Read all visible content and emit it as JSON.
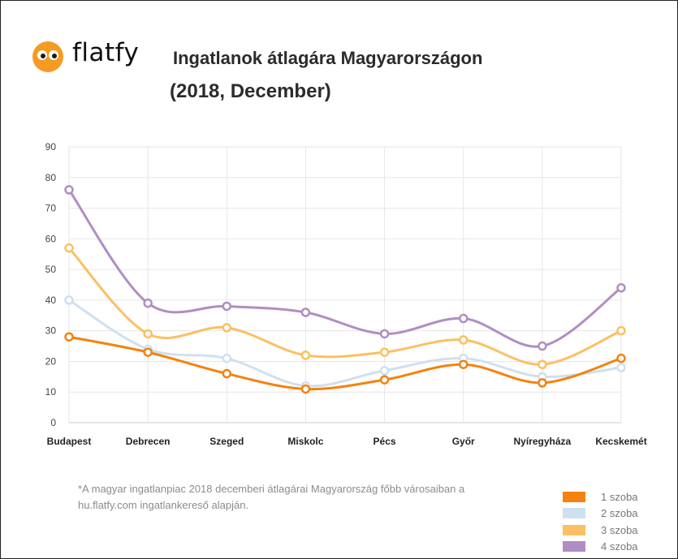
{
  "brand": {
    "name": "flatfy"
  },
  "title": "Ingatlanok átlagára Magyarországon",
  "subtitle": "(2018, December)",
  "note": {
    "line1": "*A magyar ingatlanpiac 2018 decemberi átlagárai Magyarország főbb városaiban a",
    "line2": "hu.flatfy.com ingatlankereső alapján."
  },
  "colors": {
    "logo_orange": "#f59a23",
    "grid": "#e6e6e6",
    "axis": "#cccccc"
  },
  "chart_data": {
    "type": "line",
    "categories": [
      "Budapest",
      "Debrecen",
      "Szeged",
      "Miskolc",
      "Pécs",
      "Győr",
      "Nyíregyháza",
      "Kecskemét"
    ],
    "ylim": [
      0,
      90
    ],
    "yticks": [
      0,
      10,
      20,
      30,
      40,
      50,
      60,
      70,
      80,
      90
    ],
    "grid": true,
    "legend_position": "bottom-right",
    "series": [
      {
        "name": "1 szoba",
        "color": "#f5820f",
        "values": [
          28,
          23,
          16,
          11,
          14,
          19,
          13,
          21
        ]
      },
      {
        "name": "2 szoba",
        "color": "#cfe0f0",
        "values": [
          40,
          24,
          21,
          12,
          17,
          21,
          15,
          18
        ]
      },
      {
        "name": "3 szoba",
        "color": "#fbc063",
        "values": [
          57,
          29,
          31,
          22,
          23,
          27,
          19,
          30
        ]
      },
      {
        "name": "4 szoba",
        "color": "#b08ec3",
        "values": [
          76,
          39,
          38,
          36,
          29,
          34,
          25,
          44
        ]
      }
    ]
  }
}
